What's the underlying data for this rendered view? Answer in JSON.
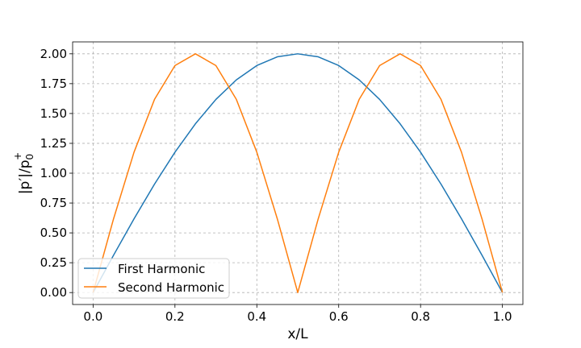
{
  "chart_data": {
    "type": "line",
    "xlabel": "x/L",
    "ylabel_parts": {
      "base": "|p",
      "prime": "′",
      "mid": "|/p",
      "sub": "0",
      "sup": "+"
    },
    "xlim": [
      -0.05,
      1.05
    ],
    "ylim": [
      -0.1,
      2.1
    ],
    "xticks": [
      0.0,
      0.2,
      0.4,
      0.6,
      0.8,
      1.0
    ],
    "xtick_labels": [
      "0.0",
      "0.2",
      "0.4",
      "0.6",
      "0.8",
      "1.0"
    ],
    "yticks": [
      0.0,
      0.25,
      0.5,
      0.75,
      1.0,
      1.25,
      1.5,
      1.75,
      2.0
    ],
    "ytick_labels": [
      "0.00",
      "0.25",
      "0.50",
      "0.75",
      "1.00",
      "1.25",
      "1.50",
      "1.75",
      "2.00"
    ],
    "grid": true,
    "legend_position": "lower-left",
    "x": [
      0.0,
      0.05,
      0.1,
      0.15,
      0.2,
      0.25,
      0.3,
      0.35,
      0.4,
      0.45,
      0.5,
      0.55,
      0.6,
      0.65,
      0.7,
      0.75,
      0.8,
      0.85,
      0.9,
      0.95,
      1.0
    ],
    "series": [
      {
        "name": "First Harmonic",
        "color": "#1f77b4",
        "values": [
          0.0,
          0.313,
          0.618,
          0.908,
          1.176,
          1.414,
          1.618,
          1.782,
          1.902,
          1.975,
          2.0,
          1.975,
          1.902,
          1.782,
          1.618,
          1.414,
          1.176,
          0.908,
          0.618,
          0.313,
          0.0
        ]
      },
      {
        "name": "Second Harmonic",
        "color": "#ff7f0e",
        "values": [
          0.0,
          0.618,
          1.176,
          1.618,
          1.902,
          2.0,
          1.902,
          1.618,
          1.176,
          0.618,
          0.0,
          0.618,
          1.176,
          1.618,
          1.902,
          2.0,
          1.902,
          1.618,
          1.176,
          0.618,
          0.0
        ]
      }
    ]
  }
}
